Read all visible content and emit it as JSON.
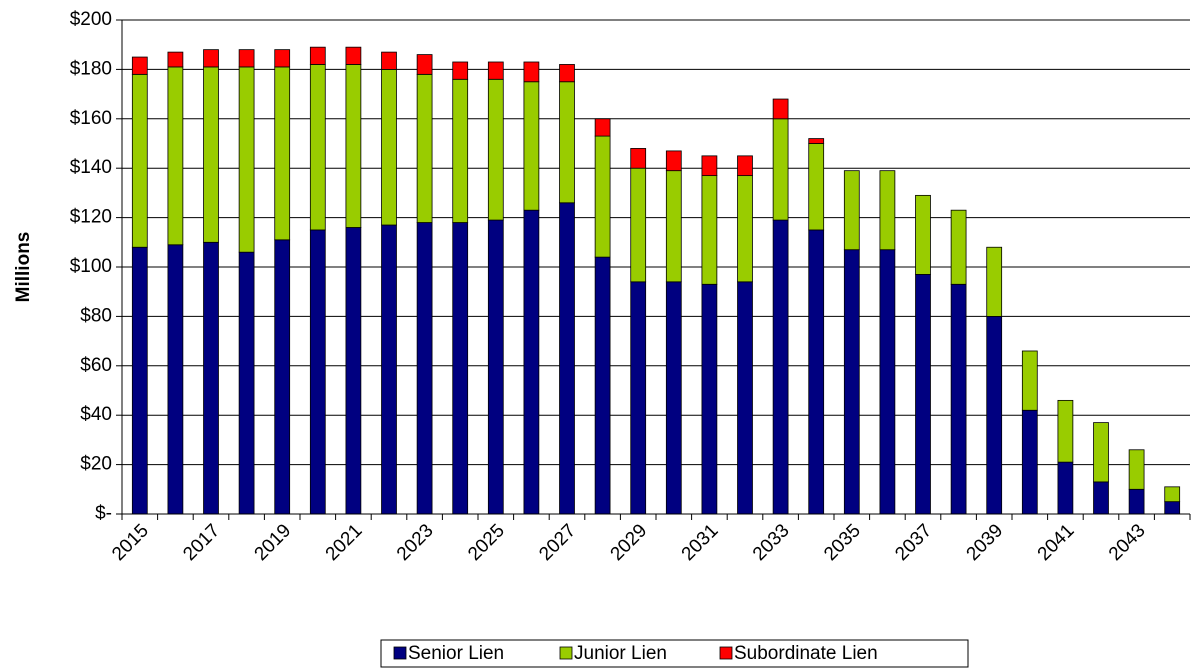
{
  "chart_data": {
    "type": "bar",
    "stacked": true,
    "y_label": "Millions",
    "categories": [
      "2015",
      null,
      "2017",
      null,
      "2019",
      null,
      "2021",
      null,
      "2023",
      null,
      "2025",
      null,
      "2027",
      null,
      "2029",
      null,
      "2031",
      null,
      "2033",
      null,
      "2035",
      null,
      "2037",
      null,
      "2039",
      null,
      "2041",
      null,
      "2043",
      null
    ],
    "series": [
      {
        "name": "Senior Lien",
        "color": "#000080",
        "values": [
          108,
          109,
          110,
          106,
          111,
          115,
          116,
          117,
          118,
          118,
          119,
          123,
          126,
          104,
          94,
          94,
          93,
          94,
          119,
          115,
          107,
          107,
          97,
          93,
          80,
          42,
          21,
          13,
          10,
          5
        ]
      },
      {
        "name": "Junior Lien",
        "color": "#99cc00",
        "values": [
          70,
          72,
          71,
          75,
          70,
          67,
          66,
          63,
          60,
          58,
          57,
          52,
          49,
          49,
          46,
          45,
          44,
          43,
          41,
          35,
          32,
          32,
          32,
          30,
          28,
          24,
          25,
          24,
          16,
          6
        ]
      },
      {
        "name": "Subordinate Lien",
        "color": "#ff0000",
        "values": [
          7,
          6,
          7,
          7,
          7,
          7,
          7,
          7,
          8,
          7,
          7,
          8,
          7,
          7,
          8,
          8,
          8,
          8,
          8,
          2,
          0,
          0,
          0,
          0,
          0,
          0,
          0,
          0,
          0,
          0
        ]
      }
    ],
    "ylim": [
      0,
      200
    ],
    "yticks": [
      {
        "value": 0,
        "label": "$-"
      },
      {
        "value": 20,
        "label": "$20"
      },
      {
        "value": 40,
        "label": "$40"
      },
      {
        "value": 60,
        "label": "$60"
      },
      {
        "value": 80,
        "label": "$80"
      },
      {
        "value": 100,
        "label": "$100"
      },
      {
        "value": 120,
        "label": "$120"
      },
      {
        "value": 140,
        "label": "$140"
      },
      {
        "value": 160,
        "label": "$160"
      },
      {
        "value": 180,
        "label": "$180"
      },
      {
        "value": 200,
        "label": "$200"
      }
    ],
    "grid": true,
    "legend": "bottom"
  }
}
